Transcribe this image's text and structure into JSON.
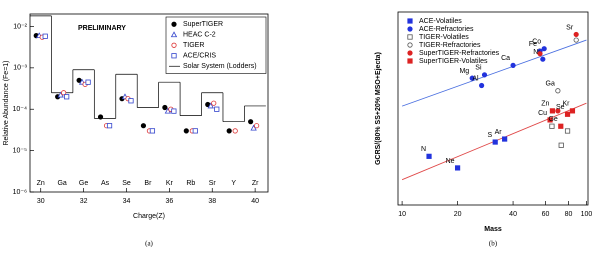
{
  "chart_data": [
    {
      "type": "scatter",
      "annotation": "PRELIMINARY",
      "caption": "(a)",
      "xlabel": "Charge(Z)",
      "ylabel": "Relative Abundance (Fe=1)",
      "xlim": [
        29.5,
        40.6
      ],
      "xticks": [
        30,
        32,
        34,
        36,
        38,
        40
      ],
      "yscale": "log",
      "ylim": [
        1e-06,
        0.02
      ],
      "yticks": [
        {
          "value": 0.01,
          "label": "10⁻²"
        },
        {
          "value": 0.001,
          "label": "10⁻³"
        },
        {
          "value": 0.0001,
          "label": "10⁻⁴"
        },
        {
          "value": 1e-05,
          "label": "10⁻⁵"
        },
        {
          "value": 1e-06,
          "label": "10⁻⁶"
        }
      ],
      "legend": "upper right",
      "legend_box": true,
      "x": [
        30,
        31,
        32,
        33,
        34,
        35,
        36,
        37,
        38,
        39,
        40
      ],
      "elements": [
        "Zn",
        "Ga",
        "Ge",
        "As",
        "Se",
        "Br",
        "Kr",
        "Rb",
        "Sr",
        "Y",
        "Zr"
      ],
      "series": [
        {
          "name": "SuperTIGER",
          "color": "#000000",
          "marker": "circle",
          "filled": true,
          "values": [
            0.006,
            0.0002,
            0.0005,
            6.5e-05,
            0.00018,
            4e-05,
            0.00011,
            3e-05,
            0.00013,
            3e-05,
            5e-05
          ]
        },
        {
          "name": "HEAC C-2",
          "color": "#3344cc",
          "marker": "triangle",
          "filled": false,
          "values": [
            0.006,
            0.00022,
            0.00045,
            null,
            0.0002,
            null,
            9e-05,
            null,
            0.00012,
            null,
            3.5e-05
          ]
        },
        {
          "name": "TIGER",
          "color": "#dd3333",
          "marker": "circle",
          "filled": false,
          "values": [
            0.0055,
            0.00025,
            0.0004,
            4e-05,
            0.00018,
            3e-05,
            0.0001,
            3e-05,
            0.00014,
            3e-05,
            4e-05
          ]
        },
        {
          "name": "ACE/CRIS",
          "color": "#3344cc",
          "marker": "square",
          "filled": false,
          "values": [
            0.0058,
            0.0002,
            0.00045,
            4e-05,
            0.00016,
            3e-05,
            9e-05,
            3e-05,
            0.0001,
            null,
            null
          ]
        }
      ],
      "reference": {
        "name": "Solar System (Lodders)",
        "color": "#000000",
        "values": [
          0.018,
          0.00025,
          0.0009,
          6e-05,
          0.0007,
          0.00011,
          0.00045,
          7e-05,
          0.00025,
          5e-05,
          0.00012
        ]
      }
    },
    {
      "type": "scatter",
      "caption": "(b)",
      "xlabel": "Mass",
      "ylabel": "GCRS/(80% SS+20% MSO+Ejecta)",
      "xscale": "log",
      "yscale": "log",
      "xlim": [
        9.5,
        102
      ],
      "ylim": [
        0.045,
        2.2
      ],
      "xticks": [
        10,
        20,
        40,
        60,
        80,
        100
      ],
      "legend": "upper left",
      "legend_box": false,
      "series": [
        {
          "name": "ACE-Volatiles",
          "color": "#2233dd",
          "marker": "square",
          "filled": true,
          "x": [
            14,
            20,
            32,
            36
          ],
          "values": [
            0.12,
            0.095,
            0.16,
            0.17
          ],
          "labels": [
            "N",
            "Ne",
            "S",
            "Ar"
          ]
        },
        {
          "name": "ACE-Refractories",
          "color": "#2233dd",
          "marker": "circle",
          "filled": true,
          "x": [
            24,
            27,
            28,
            40,
            56,
            59,
            58
          ],
          "values": [
            0.58,
            0.5,
            0.62,
            0.75,
            1.0,
            1.05,
            0.85
          ],
          "labels": [
            "Mg",
            "Al",
            "Si",
            "Ca",
            "Fe",
            "Co",
            "Ni"
          ]
        },
        {
          "name": "TIGER-Volatiles",
          "color": "#555555",
          "marker": "square",
          "filled": false,
          "x": [
            65,
            73,
            79
          ],
          "values": [
            0.22,
            0.15,
            0.2
          ],
          "labels": [
            null,
            null,
            null
          ]
        },
        {
          "name": "TIGER-Refractories",
          "color": "#555555",
          "marker": "circle",
          "filled": false,
          "x": [
            70,
            88
          ],
          "values": [
            0.45,
            1.25
          ],
          "labels": [
            "Ga",
            null
          ]
        },
        {
          "name": "SuperTIGER-Refractories",
          "color": "#dd2222",
          "marker": "circle",
          "filled": true,
          "x": [
            56,
            70,
            88
          ],
          "values": [
            0.95,
            0.3,
            1.4
          ],
          "labels": [
            null,
            null,
            "Sr"
          ]
        },
        {
          "name": "SuperTIGER-Volatiles",
          "color": "#dd2222",
          "marker": "square",
          "filled": true,
          "x": [
            63.5,
            65.4,
            72.6,
            79,
            84
          ],
          "values": [
            0.25,
            0.3,
            0.22,
            0.28,
            0.3
          ],
          "labels": [
            "Cu",
            "Zn",
            "Ge",
            "Se",
            "Kr"
          ]
        }
      ],
      "fits": [
        {
          "color": "#4a6fe0",
          "x": [
            10,
            100
          ],
          "values": [
            0.33,
            1.25
          ]
        },
        {
          "color": "#e04848",
          "x": [
            10,
            100
          ],
          "values": [
            0.075,
            0.35
          ]
        }
      ]
    }
  ]
}
